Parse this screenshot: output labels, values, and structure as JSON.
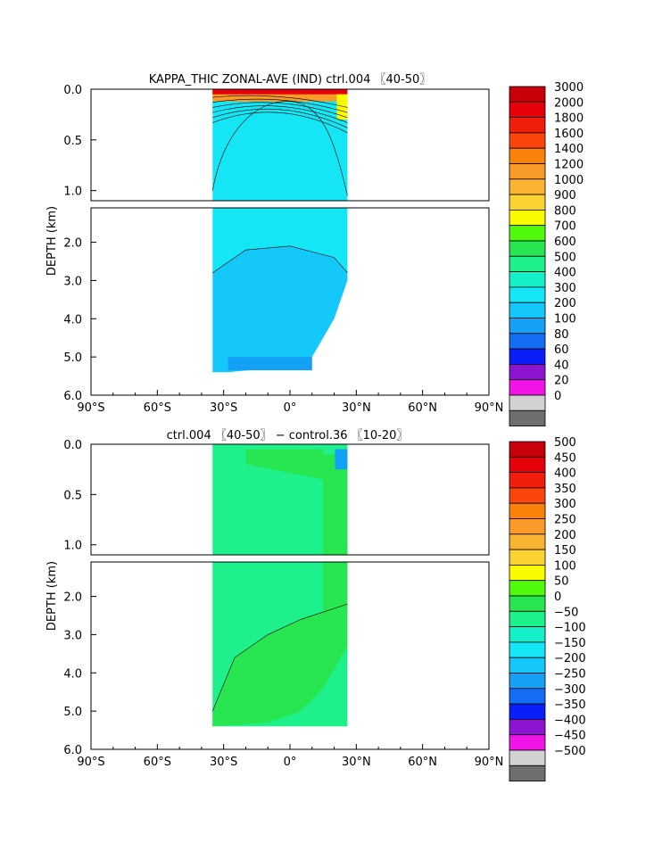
{
  "chart_data": [
    {
      "type": "heatmap",
      "title": "KAPPA_THIC ZONAL-AVE (IND) ctrl.004 〖40-50〗",
      "ylabel": "DEPTH (km)",
      "xlabel": "",
      "x_ticks": [
        "90°S",
        "60°S",
        "30°S",
        "0°",
        "30°N",
        "60°N",
        "90°N"
      ],
      "x_tick_values": [
        -90,
        -60,
        -30,
        0,
        30,
        60,
        90
      ],
      "xlim": [
        -90,
        90
      ],
      "y_ticks_upper": [
        "0.0",
        "0.5",
        "1.0"
      ],
      "y_ticks_upper_values": [
        0,
        0.5,
        1.0
      ],
      "y_ticks_lower": [
        "2.0",
        "3.0",
        "4.0",
        "5.0",
        "6.0"
      ],
      "y_ticks_lower_values": [
        2,
        3,
        4,
        5,
        6
      ],
      "ylim_upper": [
        0,
        1.1
      ],
      "ylim_lower": [
        1.1,
        6
      ],
      "data_lat_range": [
        -35,
        26
      ],
      "legend_placement": "right",
      "legend": [
        {
          "label": "3000",
          "color": "#c8000a"
        },
        {
          "label": "2000",
          "color": "#e6000a"
        },
        {
          "label": "1800",
          "color": "#f01e0a"
        },
        {
          "label": "1600",
          "color": "#fa460a"
        },
        {
          "label": "1400",
          "color": "#fa820a"
        },
        {
          "label": "1200",
          "color": "#fa9a28"
        },
        {
          "label": "1000",
          "color": "#fab432"
        },
        {
          "label": "900",
          "color": "#fad232"
        },
        {
          "label": "800",
          "color": "#fafa00"
        },
        {
          "label": "700",
          "color": "#50fa0a"
        },
        {
          "label": "600",
          "color": "#28e650"
        },
        {
          "label": "500",
          "color": "#1ef08c"
        },
        {
          "label": "400",
          "color": "#14f0c8"
        },
        {
          "label": "300",
          "color": "#14e6f5"
        },
        {
          "label": "200",
          "color": "#14c8fa"
        },
        {
          "label": "100",
          "color": "#14a0f5"
        },
        {
          "label": "80",
          "color": "#146ef5"
        },
        {
          "label": "60",
          "color": "#0a1efa"
        },
        {
          "label": "40",
          "color": "#8c14d2"
        },
        {
          "label": "20",
          "color": "#f014e6"
        },
        {
          "label": "0",
          "color": "#d2d2d2"
        },
        {
          "label": "",
          "color": "#6e6e6e"
        }
      ]
    },
    {
      "type": "heatmap",
      "title": "ctrl.004 〖40-50〗 − control.36 〖10-20〗",
      "ylabel": "DEPTH (km)",
      "xlabel": "",
      "x_ticks": [
        "90°S",
        "60°S",
        "30°S",
        "0°",
        "30°N",
        "60°N",
        "90°N"
      ],
      "x_tick_values": [
        -90,
        -60,
        -30,
        0,
        30,
        60,
        90
      ],
      "xlim": [
        -90,
        90
      ],
      "y_ticks_upper": [
        "0.0",
        "0.5",
        "1.0"
      ],
      "y_ticks_upper_values": [
        0,
        0.5,
        1.0
      ],
      "y_ticks_lower": [
        "2.0",
        "3.0",
        "4.0",
        "5.0",
        "6.0"
      ],
      "y_ticks_lower_values": [
        2,
        3,
        4,
        5,
        6
      ],
      "ylim_upper": [
        0,
        1.1
      ],
      "ylim_lower": [
        1.1,
        6
      ],
      "data_lat_range": [
        -35,
        26
      ],
      "legend_placement": "right",
      "legend": [
        {
          "label": "500",
          "color": "#c8000a"
        },
        {
          "label": "450",
          "color": "#e6000a"
        },
        {
          "label": "400",
          "color": "#f01e0a"
        },
        {
          "label": "350",
          "color": "#fa460a"
        },
        {
          "label": "300",
          "color": "#fa820a"
        },
        {
          "label": "250",
          "color": "#fa9a28"
        },
        {
          "label": "200",
          "color": "#fab432"
        },
        {
          "label": "150",
          "color": "#fad232"
        },
        {
          "label": "100",
          "color": "#fafa00"
        },
        {
          "label": "50",
          "color": "#50fa0a"
        },
        {
          "label": "0",
          "color": "#28e650"
        },
        {
          "label": "−50",
          "color": "#1ef08c"
        },
        {
          "label": "−100",
          "color": "#14f0c8"
        },
        {
          "label": "−150",
          "color": "#14e6f5"
        },
        {
          "label": "−200",
          "color": "#14c8fa"
        },
        {
          "label": "−250",
          "color": "#14a0f5"
        },
        {
          "label": "−300",
          "color": "#146ef5"
        },
        {
          "label": "−350",
          "color": "#0a1efa"
        },
        {
          "label": "−400",
          "color": "#8c14d2"
        },
        {
          "label": "−450",
          "color": "#f014e6"
        },
        {
          "label": "−500",
          "color": "#d2d2d2"
        },
        {
          "label": "",
          "color": "#6e6e6e"
        }
      ]
    }
  ]
}
